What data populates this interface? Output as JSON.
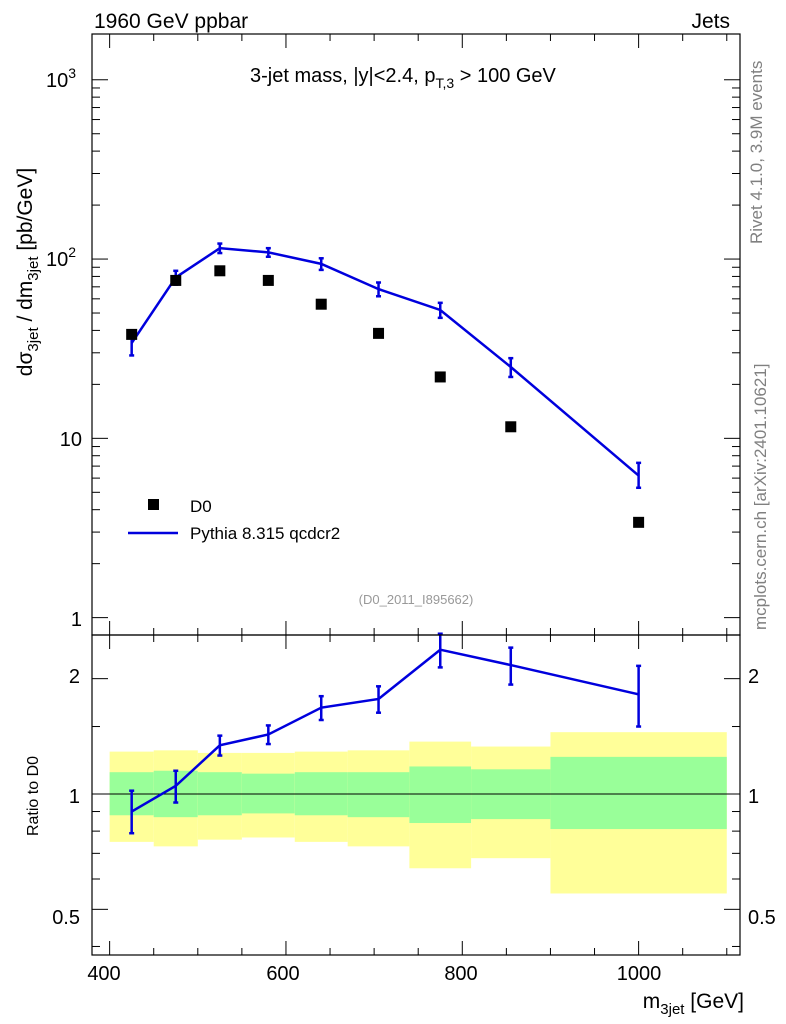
{
  "header": {
    "left": "1960 GeV ppbar",
    "right": "Jets"
  },
  "side": {
    "rivet": "Rivet 4.1.0,  3.9M events",
    "mcplots": "mcplots.cern.ch [arXiv:2401.10621]"
  },
  "analysis_id": "(D0_2011_I895662)",
  "colors": {
    "data": "#000000",
    "mc": "#0000dd",
    "band_inner": "#99ff99",
    "band_outer": "#ffff99"
  },
  "chart_data": [
    {
      "type": "scatter",
      "panel": "main",
      "title": "3-jet mass, |y|<2.4, p_T,3 > 100 GeV",
      "title_parts": {
        "main": "3-jet mass, |y|<2.4, p",
        "sub": "T,3",
        "tail": " > 100 GeV"
      },
      "ylabel_parts": {
        "a": "dσ",
        "a_sub": "3jet",
        "b": " / dm",
        "b_sub": "3jet",
        "c": " [pb/GeV]"
      },
      "yscale": "log",
      "ylim": [
        0.8,
        1800
      ],
      "xlim": [
        380,
        1115
      ],
      "ytick_labels": [
        {
          "value": 1,
          "label": "1"
        },
        {
          "value": 10,
          "label": "10"
        },
        {
          "value": 100,
          "label": "10",
          "sup": "2"
        },
        {
          "value": 1000,
          "label": "10",
          "sup": "3"
        }
      ],
      "legend": [
        {
          "name": "D0",
          "marker": "square"
        },
        {
          "name": "Pythia 8.315 qcdcr2",
          "marker": "line"
        }
      ],
      "series": [
        {
          "name": "D0",
          "x": [
            425,
            475,
            525,
            580,
            640,
            705,
            775,
            855,
            1000
          ],
          "y": [
            38,
            76,
            86,
            76,
            56,
            38.5,
            22,
            11.6,
            3.4
          ]
        },
        {
          "name": "Pythia 8.315 qcdcr2",
          "x": [
            425,
            475,
            525,
            580,
            640,
            705,
            775,
            855,
            1000
          ],
          "y": [
            34,
            79,
            115,
            109,
            94,
            68,
            52,
            25,
            6.2
          ],
          "err_up": [
            4.5,
            7,
            7,
            6,
            7,
            6,
            5,
            3,
            1.1
          ],
          "err_down": [
            5,
            7,
            7,
            6,
            7,
            6,
            5,
            3,
            0.9
          ]
        }
      ]
    },
    {
      "type": "line",
      "panel": "ratio",
      "ylabel": "Ratio to D0",
      "yscale": "log",
      "ylim": [
        0.38,
        2.6
      ],
      "xlim": [
        380,
        1115
      ],
      "xlabel_parts": {
        "main": "m",
        "sub": "3jet",
        "tail": " [GeV]"
      },
      "xticks": [
        400,
        600,
        800,
        1000
      ],
      "xtick_labels": [
        "400",
        "600",
        "800",
        "1000"
      ],
      "ytick_labels": [
        {
          "value": 0.5,
          "label": "0.5"
        },
        {
          "value": 1,
          "label": "1"
        },
        {
          "value": 2,
          "label": "2"
        }
      ],
      "bands": {
        "bins": [
          [
            400,
            450
          ],
          [
            450,
            500
          ],
          [
            500,
            550
          ],
          [
            550,
            610
          ],
          [
            610,
            670
          ],
          [
            670,
            740
          ],
          [
            740,
            810
          ],
          [
            810,
            900
          ],
          [
            900,
            1100
          ]
        ],
        "inner_low": [
          0.88,
          0.87,
          0.88,
          0.89,
          0.88,
          0.87,
          0.84,
          0.86,
          0.81
        ],
        "inner_high": [
          1.14,
          1.15,
          1.14,
          1.13,
          1.14,
          1.14,
          1.18,
          1.16,
          1.25
        ],
        "outer_low": [
          0.75,
          0.73,
          0.76,
          0.77,
          0.75,
          0.73,
          0.64,
          0.68,
          0.55
        ],
        "outer_high": [
          1.29,
          1.3,
          1.28,
          1.28,
          1.29,
          1.3,
          1.37,
          1.33,
          1.45
        ]
      },
      "series": [
        {
          "name": "Pythia 8.315 qcdcr2",
          "x": [
            425,
            475,
            525,
            580,
            640,
            705,
            775,
            855,
            1000
          ],
          "y": [
            0.9,
            1.05,
            1.34,
            1.43,
            1.68,
            1.77,
            2.38,
            2.17,
            1.82
          ],
          "err_up": [
            0.12,
            0.1,
            0.08,
            0.08,
            0.12,
            0.14,
            0.24,
            0.24,
            0.34
          ],
          "err_down": [
            0.11,
            0.1,
            0.08,
            0.08,
            0.12,
            0.14,
            0.24,
            0.24,
            0.32
          ]
        }
      ]
    }
  ]
}
